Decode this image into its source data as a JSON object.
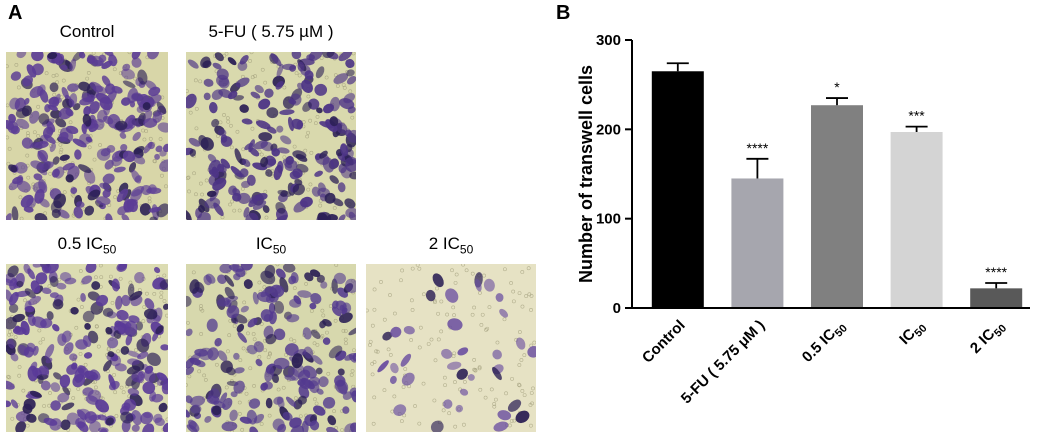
{
  "panels": {
    "a": "A",
    "b": "B"
  },
  "images": [
    {
      "label": "Control",
      "sub": "",
      "suffix": "",
      "bg": "#d8d6a8",
      "cell": "#5b3c95",
      "density": 0.95
    },
    {
      "label": "5-FU ( 5.75 µM )",
      "sub": "",
      "suffix": "",
      "bg": "#d9d9ad",
      "cell": "#4d3486",
      "density": 0.8
    },
    {
      "label": "0.5 IC",
      "sub": "50",
      "suffix": "",
      "bg": "#dcdcb2",
      "cell": "#5a3a98",
      "density": 0.85
    },
    {
      "label": "IC",
      "sub": "50",
      "suffix": "",
      "bg": "#d7d8ad",
      "cell": "#533a8f",
      "density": 0.75
    },
    {
      "label": "2 IC",
      "sub": "50",
      "suffix": "",
      "bg": "#e6e2c4",
      "cell": "#6a4ea0",
      "density": 0.14
    }
  ],
  "chart_data": {
    "type": "bar",
    "ylabel": "Number of transwell cells",
    "ylim": [
      0,
      300
    ],
    "yticks": [
      0,
      100,
      200,
      300
    ],
    "categories": [
      {
        "main": "Control",
        "sub": "",
        "suffix": ""
      },
      {
        "main": "5-FU ( 5.75 μM )",
        "sub": "",
        "suffix": ""
      },
      {
        "main": "0.5 IC",
        "sub": "50",
        "suffix": ""
      },
      {
        "main": "IC",
        "sub": "50",
        "suffix": ""
      },
      {
        "main": "2 IC",
        "sub": "50",
        "suffix": ""
      }
    ],
    "values": [
      265,
      145,
      227,
      197,
      22
    ],
    "errors": [
      9,
      22,
      8,
      6,
      6
    ],
    "significance": [
      "",
      "****",
      "*",
      "***",
      "****"
    ],
    "colors": [
      "#000000",
      "#a6a6ae",
      "#808080",
      "#d4d4d4",
      "#595959"
    ]
  }
}
